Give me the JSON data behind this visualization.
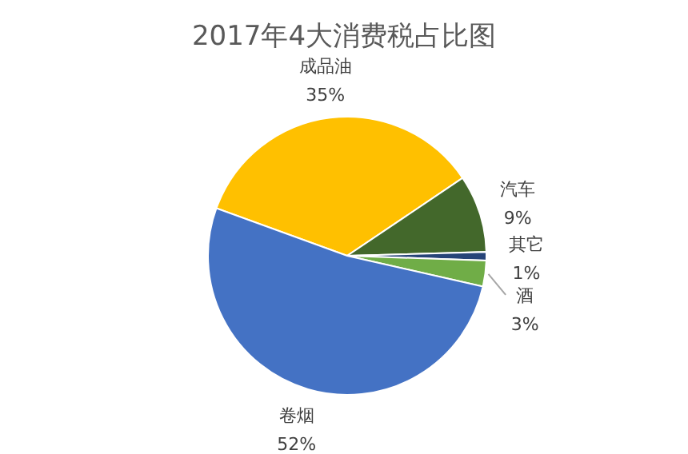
{
  "chart_data": {
    "type": "pie",
    "title": "2017年4大消费税占比图",
    "categories": [
      "成品油",
      "汽车",
      "其它",
      "酒",
      "卷烟"
    ],
    "values": [
      35,
      9,
      1,
      3,
      52
    ],
    "value_labels": [
      "35%",
      "9%",
      "1%",
      "3%",
      "52%"
    ],
    "colors": [
      "#ffc000",
      "#43682b",
      "#264478",
      "#70ad47",
      "#4472c4"
    ],
    "legend": false
  }
}
